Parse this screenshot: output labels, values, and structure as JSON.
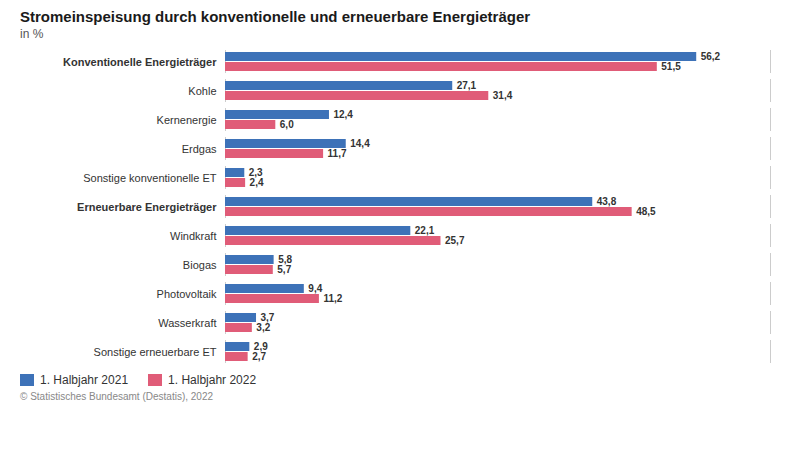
{
  "chart_data": {
    "type": "bar",
    "orientation": "horizontal",
    "title": "Stromeinspeisung durch konventionelle und erneuerbare Energieträger",
    "subtitle": "in %",
    "footer": "©  Statistisches Bundesamt (Destatis), 2022",
    "categories": [
      "Konventionelle Energieträger",
      "Kohle",
      "Kernenergie",
      "Erdgas",
      "Sonstige konventionelle ET",
      "Erneuerbare Energieträger",
      "Windkraft",
      "Biogas",
      "Photovoltaik",
      "Wasserkraft",
      "Sonstige erneuerbare ET"
    ],
    "series": [
      {
        "name": "1. Halbjahr 2021",
        "color": "#3d72b8",
        "values": [
          56.2,
          27.1,
          12.4,
          14.4,
          2.3,
          43.8,
          22.1,
          5.8,
          9.4,
          3.7,
          2.9
        ],
        "value_labels": [
          "56,2",
          "27,1",
          "12,4",
          "14,4",
          "2,3",
          "43,8",
          "22,1",
          "5,8",
          "9,4",
          "3,7",
          "2,9"
        ]
      },
      {
        "name": "1. Halbjahr 2022",
        "color": "#e05c78",
        "values": [
          51.5,
          31.4,
          6.0,
          11.7,
          2.4,
          48.5,
          25.7,
          5.7,
          11.2,
          3.2,
          2.7
        ],
        "value_labels": [
          "51,5",
          "31,4",
          "6,0",
          "11,7",
          "2,4",
          "48,5",
          "25,7",
          "5,7",
          "11,2",
          "3,2",
          "2,7"
        ]
      }
    ],
    "xlim": [
      0,
      65
    ],
    "grid": false,
    "legend": "lower left",
    "data_labels": true,
    "tick_labels": "y"
  }
}
